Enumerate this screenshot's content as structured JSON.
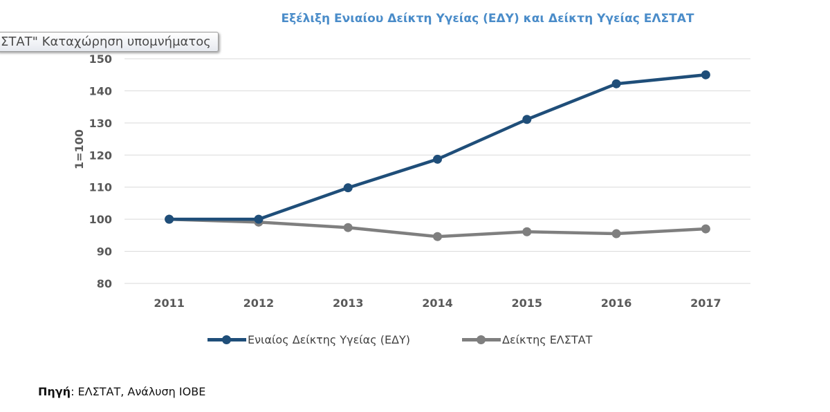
{
  "chart_data": {
    "type": "line",
    "title": "Εξέλιξη Ενιαίου Δείκτη Υγείας (ΕΔΥ) και Δείκτη Υγείας ΕΛΣΤΑΤ",
    "ylabel": "1=100",
    "xlabel": "",
    "x": [
      "2011",
      "2012",
      "2013",
      "2014",
      "2015",
      "2016",
      "2017"
    ],
    "ylim": [
      80,
      150
    ],
    "yticks": [
      80,
      90,
      100,
      110,
      120,
      130,
      140,
      150
    ],
    "grid": true,
    "legend_position": "bottom",
    "series": [
      {
        "name": "Ενιαίος Δείκτης Υγείας (ΕΔΥ)",
        "color": "#1f4e79",
        "values": [
          100,
          100,
          109.8,
          118.7,
          131.1,
          142.2,
          145.0
        ]
      },
      {
        "name": "Δείκτης ΕΛΣΤΑΤ",
        "color": "#7f7f7f",
        "values": [
          100,
          99.1,
          97.4,
          94.6,
          96.1,
          95.5,
          97.0
        ]
      }
    ]
  },
  "tooltip": "ΣΤΑΤ\" Καταχώρηση υπομνήματος",
  "source": {
    "label": "Πηγή",
    "text": ": ΕΛΣΤΑΤ, Ανάλυση ΙΟΒΕ"
  }
}
